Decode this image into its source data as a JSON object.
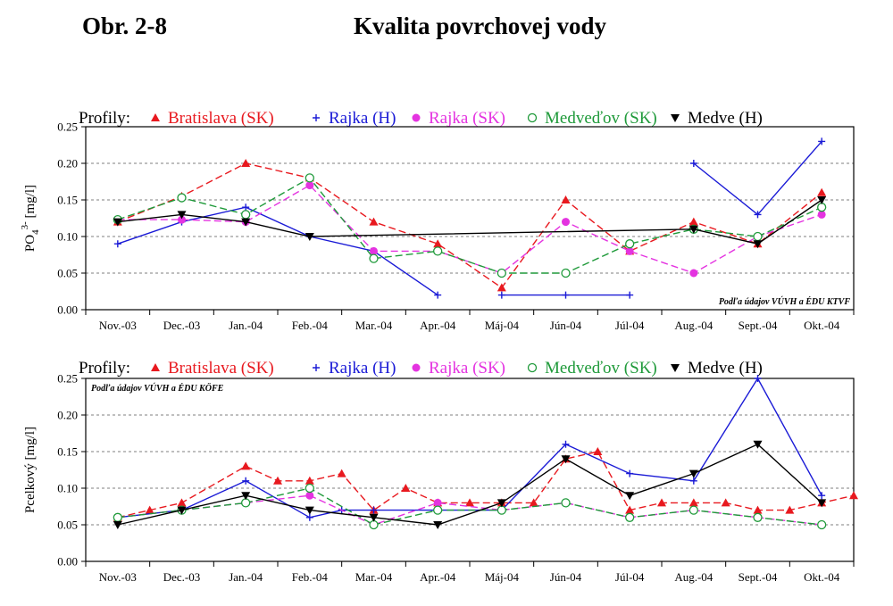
{
  "figure": {
    "label": "Obr. 2-8",
    "title": "Kvalita povrchovej vody"
  },
  "legend": {
    "prefix": "Profily:",
    "entries": [
      {
        "name": "Bratislava (SK)",
        "marker": "triangle-up",
        "color": "#e8191f",
        "dash": "dashed"
      },
      {
        "name": "Rajka (H)",
        "marker": "plus",
        "color": "#1a1ad6",
        "dash": "solid"
      },
      {
        "name": "Rajka (SK)",
        "marker": "filled-circle",
        "color": "#e433e0",
        "dash": "dashed"
      },
      {
        "name": "Medveďov (SK)",
        "marker": "open-circle",
        "color": "#1f9a3a",
        "dash": "dashed"
      },
      {
        "name": "Medve (H)",
        "marker": "triangle-down",
        "color": "#000000",
        "dash": "solid"
      }
    ]
  },
  "chart_data": [
    {
      "type": "line",
      "title": "",
      "ylabel_main": "PO",
      "ylabel_sub": "4",
      "ylabel_sup": "3-",
      "ylabel_unit": "[mg/l]",
      "ylim": [
        0,
        0.25
      ],
      "yticks": [
        "0.00",
        "0.05",
        "0.10",
        "0.15",
        "0.20",
        "0.25"
      ],
      "categories": [
        "Nov.-03",
        "Dec.-03",
        "Jan.-04",
        "Feb.-04",
        "Mar.-04",
        "Apr.-04",
        "Máj-04",
        "Jún-04",
        "Júl-04",
        "Aug.-04",
        "Sept.-04",
        "Okt.-04"
      ],
      "grid": "horizontal-dashed",
      "source_note": "Podľa údajov VÚVH a ÉDU KTVF",
      "source_position": "bottom-right",
      "series": [
        {
          "name": "Bratislava (SK)",
          "points": [
            [
              0,
              0.12
            ],
            [
              1,
              0.155
            ],
            [
              2,
              0.2
            ],
            [
              3,
              0.18
            ],
            [
              4,
              0.12
            ],
            [
              5,
              0.09
            ],
            [
              6,
              0.03
            ],
            [
              7,
              0.15
            ],
            [
              8,
              0.08
            ],
            [
              9,
              0.12
            ],
            [
              10,
              0.09
            ],
            [
              11,
              0.16
            ]
          ]
        },
        {
          "name": "Rajka (H)",
          "segments": [
            [
              [
                0,
                0.09
              ],
              [
                1,
                0.12
              ],
              [
                2,
                0.14
              ],
              [
                3,
                0.1
              ],
              [
                4,
                0.08
              ],
              [
                5,
                0.02
              ]
            ],
            [
              [
                6,
                0.02
              ],
              [
                7,
                0.02
              ],
              [
                8,
                0.02
              ]
            ],
            [
              [
                9,
                0.2
              ],
              [
                10,
                0.13
              ],
              [
                11,
                0.23
              ]
            ]
          ]
        },
        {
          "name": "Rajka (SK)",
          "points": [
            [
              0,
              0.123
            ],
            [
              1,
              0.123
            ],
            [
              2,
              0.12
            ],
            [
              3,
              0.17
            ],
            [
              4,
              0.08
            ],
            [
              5,
              0.08
            ],
            [
              6,
              0.05
            ],
            [
              7,
              0.12
            ],
            [
              8,
              0.08
            ],
            [
              9,
              0.05
            ],
            [
              10,
              0.1
            ],
            [
              11,
              0.13
            ]
          ]
        },
        {
          "name": "Medveďov (SK)",
          "points": [
            [
              0,
              0.123
            ],
            [
              1,
              0.153
            ],
            [
              2,
              0.13
            ],
            [
              3,
              0.18
            ],
            [
              4,
              0.07
            ],
            [
              5,
              0.08
            ],
            [
              6,
              0.05
            ],
            [
              7,
              0.05
            ],
            [
              8,
              0.09
            ],
            [
              9,
              0.11
            ],
            [
              10,
              0.1
            ],
            [
              11,
              0.14
            ]
          ]
        },
        {
          "name": "Medve (H)",
          "points": [
            [
              0,
              0.12
            ],
            [
              1,
              0.13
            ],
            [
              2,
              0.12
            ],
            [
              3,
              0.1
            ],
            [
              9,
              0.11
            ],
            [
              10,
              0.09
            ],
            [
              11,
              0.15
            ]
          ]
        }
      ]
    },
    {
      "type": "line",
      "title": "",
      "ylabel_main": "Pcelkový [mg/l]",
      "ylim": [
        0,
        0.25
      ],
      "yticks": [
        "0.00",
        "0.05",
        "0.10",
        "0.15",
        "0.20",
        "0.25"
      ],
      "categories": [
        "Nov.-03",
        "Dec.-03",
        "Jan.-04",
        "Feb.-04",
        "Mar.-04",
        "Apr.-04",
        "Máj-04",
        "Jún-04",
        "Júl-04",
        "Aug.-04",
        "Sept.-04",
        "Okt.-04"
      ],
      "grid": "horizontal-dashed",
      "source_note": "Podľa údajov VÚVH a ÉDU KÖFE",
      "source_position": "top-left",
      "series": [
        {
          "name": "Bratislava (SK)",
          "points": [
            [
              0,
              0.06
            ],
            [
              0.5,
              0.07
            ],
            [
              1,
              0.08
            ],
            [
              2,
              0.13
            ],
            [
              2.5,
              0.11
            ],
            [
              3,
              0.11
            ],
            [
              3.5,
              0.12
            ],
            [
              4,
              0.07
            ],
            [
              4.5,
              0.1
            ],
            [
              5,
              0.08
            ],
            [
              5.5,
              0.08
            ],
            [
              6,
              0.08
            ],
            [
              6.5,
              0.08
            ],
            [
              7,
              0.14
            ],
            [
              7.5,
              0.15
            ],
            [
              8,
              0.07
            ],
            [
              8.5,
              0.08
            ],
            [
              9,
              0.08
            ],
            [
              9.5,
              0.08
            ],
            [
              10,
              0.07
            ],
            [
              10.5,
              0.07
            ],
            [
              11,
              0.08
            ],
            [
              11.5,
              0.09
            ]
          ]
        },
        {
          "name": "Rajka (H)",
          "points": [
            [
              0,
              0.06
            ],
            [
              1,
              0.07
            ],
            [
              2,
              0.11
            ],
            [
              3,
              0.06
            ],
            [
              3.5,
              0.07
            ],
            [
              4,
              0.07
            ],
            [
              5,
              0.07
            ],
            [
              6,
              0.07
            ],
            [
              7,
              0.16
            ],
            [
              8,
              0.12
            ],
            [
              9,
              0.11
            ],
            [
              10,
              0.25
            ],
            [
              11,
              0.09
            ]
          ]
        },
        {
          "name": "Rajka (SK)",
          "points": [
            [
              0,
              0.06
            ],
            [
              1,
              0.07
            ],
            [
              2,
              0.08
            ],
            [
              3,
              0.09
            ],
            [
              4,
              0.05
            ],
            [
              5,
              0.08
            ],
            [
              6,
              0.07
            ],
            [
              7,
              0.08
            ],
            [
              8,
              0.06
            ],
            [
              9,
              0.07
            ],
            [
              10,
              0.06
            ],
            [
              11,
              0.05
            ]
          ]
        },
        {
          "name": "Medveďov (SK)",
          "points": [
            [
              0,
              0.06
            ],
            [
              1,
              0.07
            ],
            [
              2,
              0.08
            ],
            [
              3,
              0.1
            ],
            [
              4,
              0.05
            ],
            [
              5,
              0.07
            ],
            [
              6,
              0.07
            ],
            [
              7,
              0.08
            ],
            [
              8,
              0.06
            ],
            [
              9,
              0.07
            ],
            [
              10,
              0.06
            ],
            [
              11,
              0.05
            ]
          ]
        },
        {
          "name": "Medve (H)",
          "points": [
            [
              0,
              0.05
            ],
            [
              1,
              0.07
            ],
            [
              2,
              0.09
            ],
            [
              3,
              0.07
            ],
            [
              4,
              0.06
            ],
            [
              5,
              0.05
            ],
            [
              6,
              0.08
            ],
            [
              7,
              0.14
            ],
            [
              8,
              0.09
            ],
            [
              9,
              0.12
            ],
            [
              10,
              0.16
            ],
            [
              11,
              0.08
            ]
          ]
        }
      ]
    }
  ]
}
